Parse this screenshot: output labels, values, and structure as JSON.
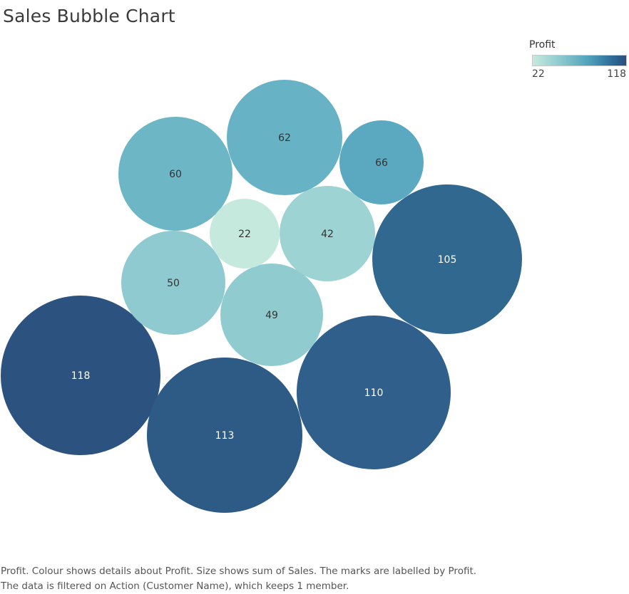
{
  "header": {
    "title": "Sales Bubble Chart"
  },
  "legend": {
    "title": "Profit",
    "min_label": "22",
    "max_label": "118",
    "color_low": "#c6e9de",
    "color_high": "#2a4f7d"
  },
  "chart_data": {
    "type": "bubble",
    "title": "Sales Bubble Chart",
    "size_measure": "sum of Sales",
    "color_measure": "Profit",
    "label_measure": "Profit",
    "points": [
      {
        "label": "118",
        "profit": 118
      },
      {
        "label": "113",
        "profit": 113
      },
      {
        "label": "110",
        "profit": 110
      },
      {
        "label": "105",
        "profit": 105
      },
      {
        "label": "66",
        "profit": 66
      },
      {
        "label": "62",
        "profit": 62
      },
      {
        "label": "60",
        "profit": 60
      },
      {
        "label": "50",
        "profit": 50
      },
      {
        "label": "49",
        "profit": 49
      },
      {
        "label": "42",
        "profit": 42
      },
      {
        "label": "22",
        "profit": 22
      }
    ],
    "color_range": [
      22,
      118
    ],
    "legend_position": "top-right"
  },
  "footer": {
    "line1": "Profit.  Colour shows details about Profit.  Size shows sum of Sales.  The marks are labelled by Profit.",
    "line2": "The data is filtered on Action (Customer Name), which keeps 1 member."
  }
}
